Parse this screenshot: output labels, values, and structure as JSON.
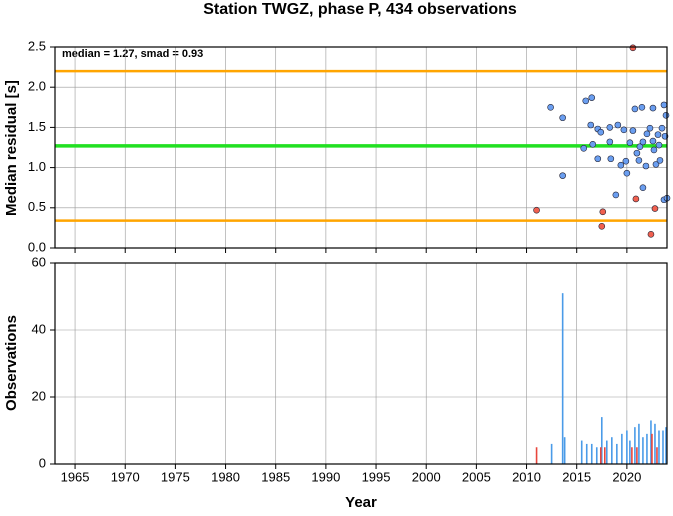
{
  "chart_data": [
    {
      "type": "scatter",
      "title": "Station TWGZ, phase P, 434 observations",
      "ylabel": "Median residual [s]",
      "annotation": "median = 1.27, smad = 0.93",
      "xlim": [
        1963,
        2024
      ],
      "xticks": [
        1965,
        1970,
        1975,
        1980,
        1985,
        1990,
        1995,
        2000,
        2005,
        2010,
        2015,
        2020
      ],
      "ylim": [
        0,
        2.5
      ],
      "yticks": [
        {
          "value": 0,
          "label": "0.0"
        },
        0.5,
        {
          "value": 1,
          "label": "1.0"
        },
        1.5,
        {
          "value": 2,
          "label": "2.0"
        },
        2.5
      ],
      "grid": true,
      "hlines": [
        {
          "value": 2.2,
          "color": "#ffa500"
        },
        {
          "value": 1.27,
          "color": "#22e022"
        },
        {
          "value": 0.34,
          "color": "#ffa500"
        }
      ],
      "series": [
        {
          "color": "#f0604f",
          "x": [
            2011.0,
            2017.5,
            2017.6,
            2020.6,
            2020.9,
            2022.4,
            2022.8
          ],
          "values": [
            0.47,
            0.27,
            0.45,
            2.49,
            0.61,
            0.17,
            0.49
          ]
        },
        {
          "color": "#6a9ef0",
          "x": [
            2012.4,
            2013.6,
            2013.6,
            2015.7,
            2015.9,
            2016.5,
            2016.4,
            2016.6,
            2017.1,
            2017.4,
            2017.1,
            2018.3,
            2018.3,
            2018.4,
            2018.9,
            2019.1,
            2019.4,
            2019.7,
            2019.9,
            2020.0,
            2020.3,
            2020.6,
            2020.8,
            2021.0,
            2021.2,
            2021.3,
            2021.5,
            2021.6,
            2021.6,
            2021.9,
            2022.0,
            2022.3,
            2022.6,
            2022.6,
            2022.7,
            2022.9,
            2023.1,
            2023.2,
            2023.3,
            2023.5,
            2023.7,
            2023.8,
            2023.9,
            2023.7,
            2024.0
          ],
          "values": [
            1.75,
            1.62,
            0.9,
            1.24,
            1.83,
            1.87,
            1.53,
            1.29,
            1.48,
            1.44,
            1.11,
            1.5,
            1.32,
            1.11,
            0.66,
            1.53,
            1.03,
            1.47,
            1.08,
            0.93,
            1.31,
            1.46,
            1.73,
            1.18,
            1.09,
            1.26,
            1.75,
            1.32,
            0.75,
            1.02,
            1.42,
            1.49,
            1.74,
            1.33,
            1.22,
            1.04,
            1.41,
            1.28,
            1.09,
            1.49,
            1.78,
            1.39,
            1.65,
            0.6,
            0.62
          ]
        }
      ]
    },
    {
      "type": "bar",
      "ylabel": "Observations",
      "xlabel": "Year",
      "xlim": [
        1963,
        2024
      ],
      "xticks": [
        1965,
        1970,
        1975,
        1980,
        1985,
        1990,
        1995,
        2000,
        2005,
        2010,
        2015,
        2020
      ],
      "ylim": [
        0,
        60
      ],
      "yticks": [
        0,
        20,
        40,
        60
      ],
      "grid": true,
      "series": [
        {
          "color": "#4a9be8",
          "x": [
            2012.5,
            2013.6,
            2013.8,
            2015.5,
            2016.0,
            2016.5,
            2017.0,
            2017.5,
            2018.0,
            2018.5,
            2019.0,
            2019.5,
            2020.0,
            2020.3,
            2020.8,
            2021.2,
            2021.6,
            2022.0,
            2022.4,
            2022.8,
            2023.2,
            2023.6,
            2023.9
          ],
          "values": [
            6,
            51,
            8,
            7,
            6,
            6,
            5,
            14,
            7,
            8,
            6,
            9,
            10,
            7,
            11,
            12,
            8,
            9,
            13,
            12,
            10,
            10,
            11
          ]
        },
        {
          "color": "#e8463c",
          "x": [
            2011.0,
            2017.4,
            2017.8,
            2020.5,
            2021.0,
            2022.5,
            2023.0
          ],
          "values": [
            5,
            5,
            5,
            5,
            5,
            9,
            5
          ]
        }
      ]
    }
  ]
}
